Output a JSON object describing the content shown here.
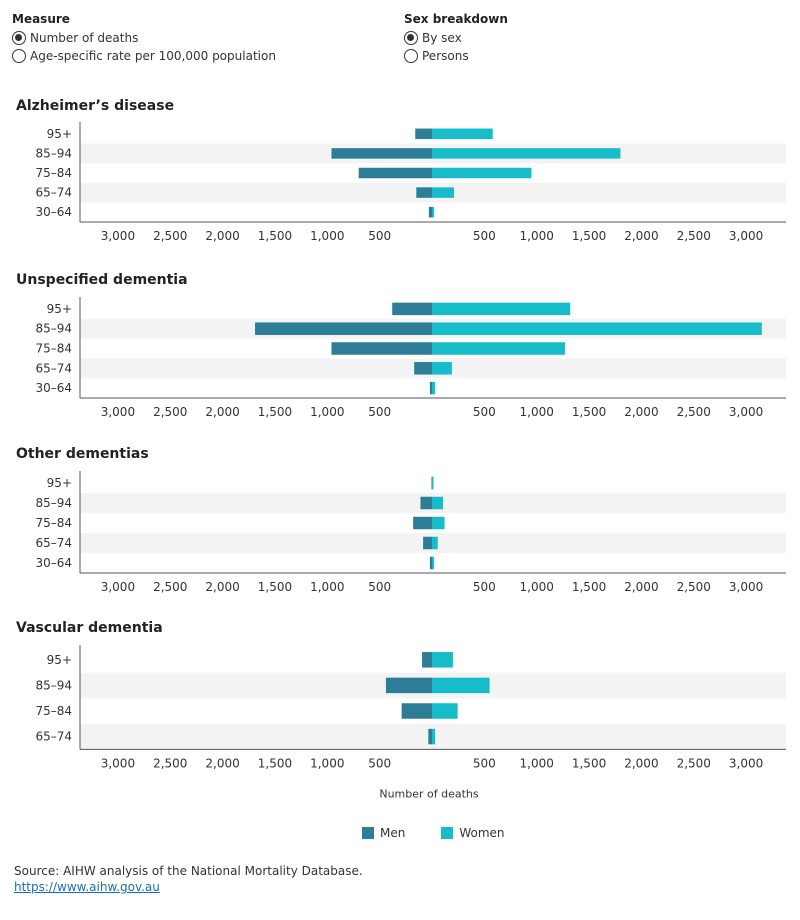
{
  "controls": {
    "measure": {
      "title": "Measure",
      "options": [
        {
          "label": "Number of deaths",
          "selected": true
        },
        {
          "label": "Age-specific rate per 100,000 population",
          "selected": false
        }
      ]
    },
    "sex_breakdown": {
      "title": "Sex breakdown",
      "options": [
        {
          "label": "By sex",
          "selected": true
        },
        {
          "label": "Persons",
          "selected": false
        }
      ]
    }
  },
  "chart_data": {
    "type": "bar",
    "orientation": "horizontal-diverging",
    "xlabel": "Number of deaths",
    "xlim": [
      -3000,
      3000
    ],
    "x_ticks": [
      -3000,
      -2500,
      -2000,
      -1500,
      -1000,
      -500,
      500,
      1000,
      1500,
      2000,
      2500,
      3000
    ],
    "tick_labels": [
      "3,000",
      "2,500",
      "2,000",
      "1,500",
      "1,000",
      "500",
      "500",
      "1,000",
      "1,500",
      "2,000",
      "2,500",
      "3,000"
    ],
    "series_names": [
      "Men",
      "Women"
    ],
    "colors": {
      "Men": "#2e7d97",
      "Women": "#16bcc8"
    },
    "legend_position": "bottom",
    "panels": [
      {
        "title": "Alzheimer’s disease",
        "categories": [
          "95+",
          "85–94",
          "75–84",
          "65–74",
          "30–64"
        ],
        "men": [
          160,
          960,
          700,
          150,
          30
        ],
        "women": [
          580,
          1800,
          950,
          210,
          20
        ]
      },
      {
        "title": "Unspecified dementia",
        "categories": [
          "95+",
          "85–94",
          "75–84",
          "65–74",
          "30–64"
        ],
        "men": [
          380,
          1690,
          960,
          170,
          20
        ],
        "women": [
          1320,
          3150,
          1270,
          190,
          30
        ]
      },
      {
        "title": "Other dementias",
        "categories": [
          "95+",
          "85–94",
          "75–84",
          "65–74",
          "30–64"
        ],
        "men": [
          5,
          110,
          180,
          85,
          20
        ],
        "women": [
          10,
          105,
          120,
          55,
          20
        ]
      },
      {
        "title": "Vascular dementia",
        "categories": [
          "95+",
          "85–94",
          "75–84",
          "65–74"
        ],
        "men": [
          95,
          440,
          290,
          35
        ],
        "women": [
          200,
          550,
          245,
          30
        ]
      }
    ]
  },
  "source": {
    "text": "Source: AIHW analysis of the National Mortality Database.",
    "link": "https://www.aihw.gov.au"
  }
}
